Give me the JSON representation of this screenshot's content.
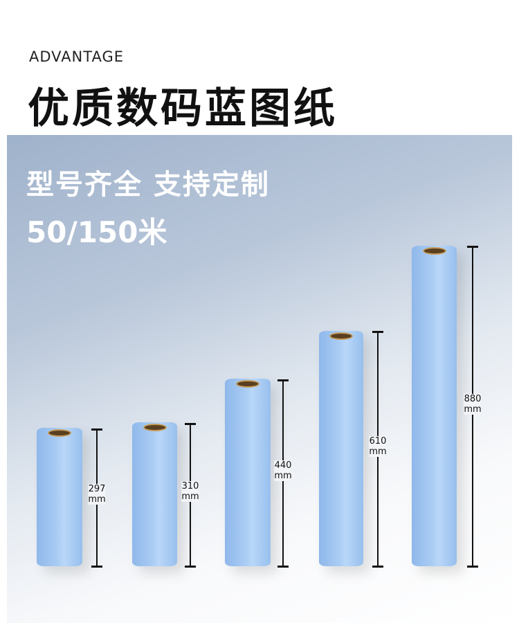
{
  "header": {
    "kicker": "ADVANTAGE",
    "title": "优质数码蓝图纸"
  },
  "banner": {
    "subtitle": "型号齐全  支持定制",
    "length": "50/150米"
  },
  "rolls": [
    {
      "size": "297",
      "unit": "mm"
    },
    {
      "size": "310",
      "unit": "mm"
    },
    {
      "size": "440",
      "unit": "mm"
    },
    {
      "size": "610",
      "unit": "mm"
    },
    {
      "size": "880",
      "unit": "mm"
    }
  ],
  "colors": {
    "roll": "#a9ccf4",
    "core": "#5a4020"
  }
}
